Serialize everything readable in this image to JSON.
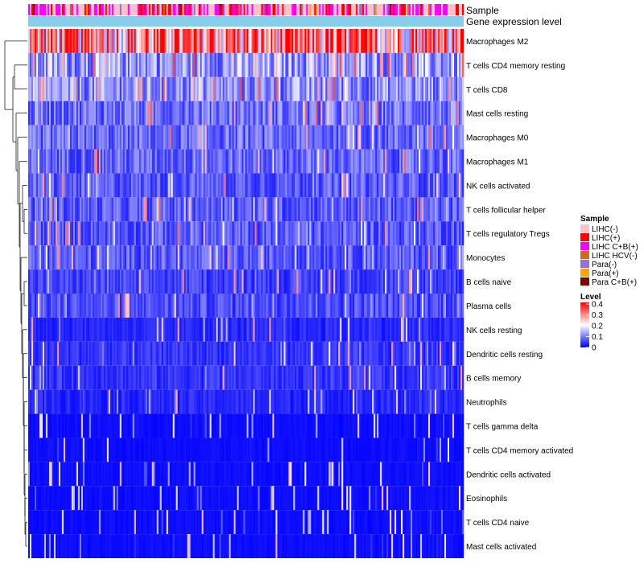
{
  "chart_data": {
    "type": "heatmap",
    "title": "",
    "annotation_tracks": [
      "Sample",
      "Gene expression level"
    ],
    "rows": [
      "Macrophages M2",
      "T cells CD4 memory resting",
      "T cells CD8",
      "Mast cells resting",
      "Macrophages M0",
      "Macrophages M1",
      "NK cells activated",
      "T cells follicular helper",
      "T cells regulatory  Tregs",
      "Monocytes",
      "B cells naive",
      "Plasma cells",
      "NK cells resting",
      "Dendritic cells resting",
      "B cells memory",
      "Neutrophils",
      "T cells gamma delta",
      "T cells CD4 memory activated",
      "Dendritic cells activated",
      "Eosinophils",
      "T cells CD4 naive",
      "Mast cells activated"
    ],
    "row_mean_levels": [
      0.28,
      0.12,
      0.11,
      0.09,
      0.08,
      0.08,
      0.07,
      0.07,
      0.07,
      0.07,
      0.05,
      0.06,
      0.03,
      0.04,
      0.04,
      0.03,
      0.01,
      0.01,
      0.01,
      0.01,
      0.01,
      0.01
    ],
    "legend": {
      "sample_title": "Sample",
      "sample_categories": [
        {
          "label": "LIHC(-)",
          "color": "#ffc0cb"
        },
        {
          "label": "LIHC(+)",
          "color": "#ff0000"
        },
        {
          "label": "LIHC C+B(+)",
          "color": "#ff00ff"
        },
        {
          "label": "LIHC HCV(-)",
          "color": "#d2691e"
        },
        {
          "label": "Para(-)",
          "color": "#9370db"
        },
        {
          "label": "Para(+)",
          "color": "#ffa500"
        },
        {
          "label": "Para C+B(+)",
          "color": "#800000"
        }
      ],
      "level_title": "Level",
      "level_ticks": [
        "0.4",
        "0.3",
        "0.2",
        "0.1",
        "0"
      ],
      "level_range": [
        0,
        0.4
      ],
      "level_colors": [
        "#0000ff",
        "#ffffff",
        "#ff0000"
      ]
    },
    "expression_track_color": "#87ceeb"
  }
}
